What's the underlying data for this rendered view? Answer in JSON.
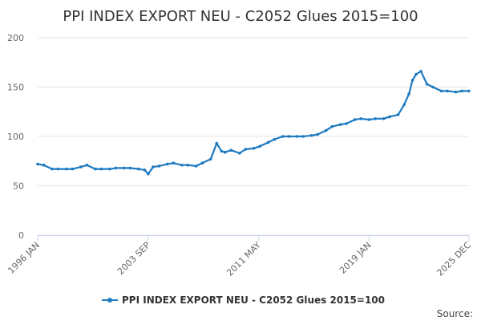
{
  "chart_data": {
    "type": "line",
    "title": "PPI INDEX EXPORT NEU - C2052 Glues 2015=100",
    "xlabel": "",
    "ylabel": "",
    "ylim": [
      0,
      200
    ],
    "y_ticks": [
      "0",
      "50",
      "100",
      "150",
      "200"
    ],
    "x_ticks": [
      "1996 JAN",
      "2003 SEP",
      "2011 MAY",
      "2019 JAN",
      "2025 DEC"
    ],
    "xlim": [
      "1996 JAN",
      "2025 DEC"
    ],
    "grid": true,
    "legend_position": "bottom",
    "source_label": "Source:",
    "series": [
      {
        "name": "PPI INDEX EXPORT NEU - C2052 Glues 2015=100",
        "color": "#1f7bc1",
        "x": [
          "1996-01",
          "1996-06",
          "1997-01",
          "1997-06",
          "1998-01",
          "1998-06",
          "1999-01",
          "1999-06",
          "2000-01",
          "2000-06",
          "2001-01",
          "2001-06",
          "2002-01",
          "2002-06",
          "2003-01",
          "2003-06",
          "2003-09",
          "2004-01",
          "2004-06",
          "2005-01",
          "2005-06",
          "2006-01",
          "2006-06",
          "2007-01",
          "2007-06",
          "2008-01",
          "2008-06",
          "2008-10",
          "2009-01",
          "2009-06",
          "2010-01",
          "2010-06",
          "2011-01",
          "2011-06",
          "2012-01",
          "2012-06",
          "2013-01",
          "2013-06",
          "2014-01",
          "2014-06",
          "2015-01",
          "2015-06",
          "2016-01",
          "2016-06",
          "2017-01",
          "2017-06",
          "2018-01",
          "2018-06",
          "2019-01",
          "2019-06",
          "2020-01",
          "2020-06",
          "2021-01",
          "2021-06",
          "2021-10",
          "2022-01",
          "2022-04",
          "2022-08",
          "2023-01",
          "2023-06",
          "2024-01",
          "2024-06",
          "2025-01",
          "2025-06",
          "2025-12"
        ],
        "values": [
          72,
          71,
          67,
          67,
          67,
          67,
          69,
          71,
          67,
          67,
          67,
          68,
          68,
          68,
          67,
          66,
          62,
          69,
          70,
          72,
          73,
          71,
          71,
          70,
          73,
          77,
          93,
          85,
          84,
          86,
          83,
          87,
          88,
          90,
          94,
          97,
          100,
          100,
          100,
          100,
          101,
          102,
          106,
          110,
          112,
          113,
          117,
          118,
          117,
          118,
          118,
          120,
          122,
          132,
          143,
          157,
          163,
          166,
          153,
          150,
          146,
          146,
          145,
          146,
          146
        ]
      }
    ]
  }
}
